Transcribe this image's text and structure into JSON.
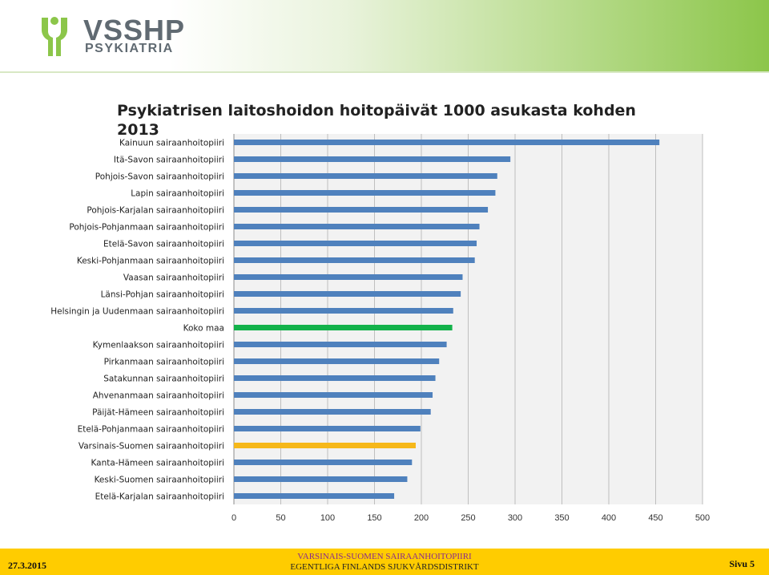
{
  "header": {
    "logo_text": "VSSHP",
    "logo_subtext": "PSYKIATRIA",
    "colors": {
      "gradient_end": "#8cc64a",
      "logo_mark": "#8cc64a",
      "logo_text": "#606a72"
    }
  },
  "chart_data": {
    "type": "bar",
    "orientation": "horizontal",
    "title": "Psykiatrisen laitoshoidon hoitopäivät 1000 asukasta kohden 2013",
    "xlabel": "",
    "ylabel": "",
    "xlim": [
      0,
      500
    ],
    "xticks": [
      "0",
      "50",
      "100",
      "150",
      "200",
      "250",
      "300",
      "350",
      "400",
      "450",
      "500"
    ],
    "grid": true,
    "legend": "none",
    "categories": [
      "Kainuun sairaanhoitopiiri",
      "Itä-Savon sairaanhoitopiiri",
      "Pohjois-Savon sairaanhoitopiiri",
      "Lapin sairaanhoitopiiri",
      "Pohjois-Karjalan sairaanhoitopiiri",
      "Pohjois-Pohjanmaan sairaanhoitopiiri",
      "Etelä-Savon sairaanhoitopiiri",
      "Keski-Pohjanmaan sairaanhoitopiiri",
      "Vaasan sairaanhoitopiiri",
      "Länsi-Pohjan sairaanhoitopiiri",
      "Helsingin ja Uudenmaan sairaanhoitopiiri",
      "Koko maa",
      "Kymenlaakson sairaanhoitopiiri",
      "Pirkanmaan sairaanhoitopiiri",
      "Satakunnan sairaanhoitopiiri",
      "Ahvenanmaan sairaanhoitopiiri",
      "Päijät-Hämeen sairaanhoitopiiri",
      "Etelä-Pohjanmaan sairaanhoitopiiri",
      "Varsinais-Suomen sairaanhoitopiiri",
      "Kanta-Hämeen sairaanhoitopiiri",
      "Keski-Suomen sairaanhoitopiiri",
      "Etelä-Karjalan sairaanhoitopiiri"
    ],
    "values": [
      454,
      295,
      281,
      279,
      271,
      262,
      259,
      257,
      244,
      242,
      234,
      233,
      227,
      219,
      215,
      212,
      210,
      199,
      194,
      190,
      185,
      171
    ],
    "bar_colors": [
      "#4f81bd",
      "#4f81bd",
      "#4f81bd",
      "#4f81bd",
      "#4f81bd",
      "#4f81bd",
      "#4f81bd",
      "#4f81bd",
      "#4f81bd",
      "#4f81bd",
      "#4f81bd",
      "#13b24a",
      "#4f81bd",
      "#4f81bd",
      "#4f81bd",
      "#4f81bd",
      "#4f81bd",
      "#4f81bd",
      "#f6b81a",
      "#4f81bd",
      "#4f81bd",
      "#4f81bd"
    ]
  },
  "footer": {
    "date": "27.3.2015",
    "org_line1": "VARSINAIS-SUOMEN SAIRAANHOITOPIIRI",
    "org_line2": "EGENTLIGA FINLANDS SJUKVÅRDSDISTRIKT",
    "page": "Sivu 5",
    "background": "#ffcc00"
  }
}
